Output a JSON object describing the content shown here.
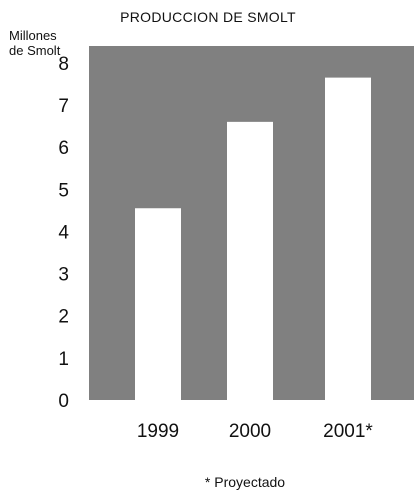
{
  "chart_data": {
    "type": "bar",
    "title": "PRODUCCION DE SMOLT",
    "ylabel_lines": [
      "Millones",
      "de Smolt"
    ],
    "xlabel": "",
    "categories": [
      "1999",
      "2000",
      "2001*"
    ],
    "values": [
      4.55,
      6.6,
      7.65
    ],
    "ylim": [
      0,
      8.4
    ],
    "yticks": [
      0,
      1,
      2,
      3,
      4,
      5,
      6,
      7,
      8
    ],
    "grid": false,
    "legend": "none",
    "footnote": "* Proyectado",
    "colors": {
      "plot_background": "#808080",
      "bars": "#ffffff",
      "text": "#111111"
    }
  }
}
